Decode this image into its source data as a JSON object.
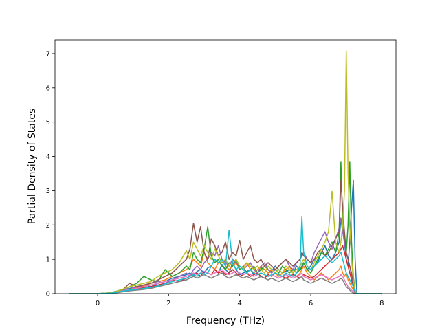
{
  "chart_data": {
    "type": "line",
    "title": "",
    "xlabel": "Frequency (THz)",
    "ylabel": "Partial Density of States",
    "xlim": [
      -1.2,
      8.4
    ],
    "ylim": [
      0,
      7.4
    ],
    "xticks": [
      0,
      2,
      4,
      6,
      8
    ],
    "yticks": [
      0,
      1,
      2,
      3,
      4,
      5,
      6,
      7
    ],
    "grid": false,
    "legend": "none",
    "colors": [
      "#1f77b4",
      "#ff7f0e",
      "#2ca02c",
      "#d62728",
      "#9467bd",
      "#8c564b",
      "#e377c2",
      "#7f7f7f",
      "#bcbd22",
      "#17becf"
    ],
    "x": [
      -0.8,
      0.0,
      0.3,
      0.5,
      0.7,
      0.9,
      1.1,
      1.3,
      1.5,
      1.7,
      1.9,
      2.1,
      2.3,
      2.5,
      2.6,
      2.7,
      2.8,
      2.9,
      3.0,
      3.1,
      3.2,
      3.3,
      3.4,
      3.5,
      3.6,
      3.7,
      3.8,
      3.9,
      4.0,
      4.1,
      4.2,
      4.3,
      4.4,
      4.5,
      4.6,
      4.7,
      4.8,
      4.9,
      5.0,
      5.1,
      5.2,
      5.3,
      5.4,
      5.5,
      5.6,
      5.7,
      5.75,
      5.8,
      5.9,
      6.0,
      6.1,
      6.2,
      6.3,
      6.4,
      6.5,
      6.6,
      6.7,
      6.8,
      6.85,
      6.9,
      6.95,
      7.0,
      7.05,
      7.1,
      7.15,
      7.2,
      7.25,
      7.3,
      8.0
    ],
    "series": [
      {
        "values": [
          0,
          0,
          0.02,
          0.05,
          0.1,
          0.15,
          0.2,
          0.25,
          0.2,
          0.3,
          0.35,
          0.45,
          0.5,
          0.55,
          0.6,
          0.5,
          0.65,
          0.7,
          0.6,
          0.75,
          0.8,
          0.7,
          0.6,
          0.85,
          0.7,
          0.6,
          0.9,
          0.7,
          0.55,
          0.6,
          0.65,
          0.7,
          0.55,
          0.6,
          0.75,
          0.7,
          0.6,
          0.65,
          0.8,
          0.7,
          0.6,
          0.65,
          0.7,
          0.6,
          0.8,
          0.7,
          0.75,
          0.9,
          0.7,
          0.8,
          1.0,
          0.9,
          1.2,
          1.4,
          1.1,
          1.0,
          1.2,
          1.5,
          2.2,
          1.8,
          1.5,
          1.0,
          0.8,
          1.5,
          2.5,
          3.3,
          1.0,
          0,
          0
        ]
      },
      {
        "values": [
          0,
          0,
          0.01,
          0.04,
          0.08,
          0.12,
          0.18,
          0.22,
          0.3,
          0.35,
          0.4,
          0.5,
          0.6,
          0.7,
          0.8,
          1.0,
          0.9,
          0.8,
          1.2,
          0.9,
          0.8,
          0.7,
          0.9,
          1.0,
          0.8,
          0.7,
          0.8,
          0.9,
          0.7,
          0.8,
          0.9,
          0.7,
          0.6,
          0.7,
          0.8,
          0.7,
          0.6,
          0.7,
          0.6,
          0.5,
          0.6,
          0.7,
          0.8,
          0.6,
          0.5,
          0.6,
          0.7,
          0.8,
          0.6,
          0.5,
          0.4,
          0.5,
          0.6,
          0.5,
          0.4,
          0.5,
          0.6,
          0.7,
          0.8,
          0.6,
          0.5,
          0.6,
          0.4,
          0.3,
          0.2,
          0.1,
          0.05,
          0,
          0
        ]
      },
      {
        "values": [
          0,
          0,
          0.02,
          0.06,
          0.12,
          0.2,
          0.3,
          0.5,
          0.4,
          0.35,
          0.7,
          0.5,
          0.6,
          0.8,
          0.7,
          1.2,
          1.0,
          0.9,
          1.3,
          1.95,
          1.1,
          0.9,
          1.0,
          0.8,
          0.7,
          0.9,
          0.8,
          1.0,
          0.7,
          0.8,
          0.6,
          0.7,
          0.8,
          0.6,
          0.7,
          0.8,
          0.7,
          0.6,
          0.7,
          0.6,
          0.8,
          0.7,
          0.6,
          0.7,
          0.6,
          0.7,
          0.8,
          0.9,
          0.7,
          0.6,
          0.8,
          1.0,
          1.2,
          1.1,
          1.3,
          1.5,
          1.2,
          1.8,
          3.85,
          2.0,
          1.5,
          1.2,
          2.0,
          3.85,
          1.5,
          0.5,
          0.1,
          0,
          0
        ]
      },
      {
        "values": [
          0,
          0,
          0.01,
          0.03,
          0.06,
          0.1,
          0.12,
          0.18,
          0.2,
          0.25,
          0.3,
          0.4,
          0.35,
          0.45,
          0.5,
          0.55,
          0.6,
          0.5,
          0.65,
          0.6,
          0.55,
          0.7,
          0.6,
          0.65,
          0.55,
          0.6,
          0.7,
          0.6,
          0.5,
          0.55,
          0.6,
          0.5,
          0.55,
          0.6,
          0.5,
          0.45,
          0.55,
          0.5,
          0.6,
          0.55,
          0.5,
          0.45,
          0.5,
          0.55,
          0.5,
          0.45,
          0.5,
          0.55,
          0.5,
          0.45,
          0.5,
          0.6,
          0.7,
          0.8,
          0.9,
          1.0,
          1.1,
          1.2,
          1.3,
          1.4,
          1.2,
          1.0,
          0.8,
          0.6,
          0.4,
          0.2,
          0.05,
          0,
          0
        ]
      },
      {
        "values": [
          0,
          0,
          0.01,
          0.05,
          0.1,
          0.2,
          0.15,
          0.25,
          0.3,
          0.35,
          0.3,
          0.4,
          0.5,
          0.6,
          0.5,
          0.7,
          0.8,
          0.7,
          0.9,
          1.0,
          1.2,
          1.1,
          1.4,
          1.0,
          0.9,
          0.8,
          1.0,
          0.9,
          0.8,
          0.7,
          0.8,
          0.9,
          0.7,
          0.6,
          0.8,
          0.9,
          0.7,
          0.6,
          0.7,
          0.8,
          0.9,
          1.0,
          0.8,
          0.7,
          0.9,
          1.0,
          1.1,
          1.2,
          1.0,
          0.9,
          1.2,
          1.4,
          1.6,
          1.8,
          1.5,
          1.3,
          1.6,
          1.9,
          2.2,
          1.8,
          1.5,
          1.2,
          1.0,
          0.8,
          0.5,
          0.3,
          0.1,
          0,
          0
        ]
      },
      {
        "values": [
          0,
          0,
          0.02,
          0.05,
          0.1,
          0.3,
          0.2,
          0.25,
          0.3,
          0.4,
          0.5,
          0.6,
          0.8,
          1.0,
          1.3,
          2.05,
          1.5,
          1.95,
          1.2,
          1.0,
          1.6,
          1.4,
          1.1,
          1.2,
          1.5,
          1.0,
          1.2,
          1.1,
          1.55,
          1.0,
          1.2,
          1.4,
          1.0,
          0.9,
          1.0,
          0.8,
          0.9,
          0.8,
          0.7,
          0.8,
          0.9,
          1.0,
          0.9,
          0.8,
          0.9,
          1.0,
          1.2,
          1.1,
          1.0,
          0.9,
          1.0,
          1.2,
          1.3,
          1.1,
          1.2,
          1.4,
          1.6,
          1.8,
          3.3,
          2.5,
          1.8,
          1.2,
          1.0,
          0.8,
          0.6,
          0.3,
          0.1,
          0,
          0
        ]
      },
      {
        "values": [
          0,
          0,
          0.01,
          0.03,
          0.08,
          0.12,
          0.15,
          0.2,
          0.25,
          0.3,
          0.35,
          0.4,
          0.45,
          0.5,
          0.55,
          0.6,
          0.55,
          0.6,
          0.65,
          0.6,
          0.55,
          0.6,
          0.65,
          0.7,
          0.6,
          0.55,
          0.6,
          0.65,
          0.6,
          0.55,
          0.6,
          0.55,
          0.5,
          0.55,
          0.6,
          0.55,
          0.5,
          0.55,
          0.5,
          0.45,
          0.5,
          0.55,
          0.5,
          0.45,
          0.5,
          0.55,
          0.6,
          0.5,
          0.45,
          0.4,
          0.45,
          0.5,
          0.55,
          0.5,
          0.45,
          0.4,
          0.45,
          0.5,
          0.55,
          0.5,
          0.4,
          0.3,
          0.2,
          0.15,
          0.1,
          0.05,
          0.02,
          0,
          0
        ]
      },
      {
        "values": [
          0,
          0,
          0.01,
          0.02,
          0.05,
          0.08,
          0.1,
          0.12,
          0.15,
          0.2,
          0.25,
          0.3,
          0.35,
          0.4,
          0.45,
          0.5,
          0.45,
          0.5,
          0.55,
          0.5,
          0.45,
          0.5,
          0.55,
          0.6,
          0.5,
          0.45,
          0.5,
          0.55,
          0.5,
          0.45,
          0.5,
          0.45,
          0.4,
          0.45,
          0.5,
          0.45,
          0.4,
          0.45,
          0.4,
          0.35,
          0.4,
          0.45,
          0.4,
          0.35,
          0.4,
          0.45,
          0.5,
          0.4,
          0.35,
          0.3,
          0.35,
          0.4,
          0.45,
          0.4,
          0.35,
          0.3,
          0.35,
          0.4,
          0.45,
          0.4,
          0.3,
          0.2,
          0.15,
          0.1,
          0.05,
          0.02,
          0.01,
          0,
          0
        ]
      },
      {
        "values": [
          0,
          0,
          0.02,
          0.05,
          0.12,
          0.2,
          0.25,
          0.3,
          0.35,
          0.5,
          0.6,
          0.7,
          0.9,
          1.25,
          1.0,
          1.5,
          1.3,
          1.1,
          1.4,
          1.2,
          1.0,
          1.3,
          1.1,
          0.9,
          1.0,
          0.8,
          0.9,
          1.0,
          0.8,
          0.7,
          0.9,
          0.8,
          0.7,
          0.8,
          0.7,
          0.6,
          0.8,
          0.7,
          0.6,
          0.7,
          0.6,
          0.8,
          0.7,
          0.6,
          0.7,
          0.8,
          0.9,
          1.0,
          0.8,
          0.7,
          0.9,
          1.1,
          1.3,
          1.5,
          1.8,
          2.98,
          1.5,
          1.2,
          1.5,
          2.0,
          3.0,
          7.08,
          3.5,
          2.0,
          1.0,
          0.4,
          0.1,
          0,
          0
        ]
      },
      {
        "values": [
          0,
          0,
          0.01,
          0.03,
          0.07,
          0.1,
          0.12,
          0.15,
          0.18,
          0.22,
          0.28,
          0.35,
          0.4,
          0.45,
          0.5,
          0.55,
          0.5,
          0.6,
          0.55,
          0.6,
          0.8,
          1.0,
          0.9,
          1.0,
          0.8,
          1.85,
          0.9,
          0.7,
          0.8,
          0.7,
          0.6,
          0.7,
          0.6,
          0.55,
          0.6,
          0.55,
          0.5,
          0.55,
          0.6,
          0.55,
          0.5,
          0.6,
          0.55,
          0.5,
          0.6,
          0.8,
          2.25,
          1.2,
          0.8,
          0.7,
          0.8,
          0.9,
          1.0,
          1.1,
          1.0,
          0.9,
          1.0,
          1.1,
          1.2,
          1.0,
          0.8,
          0.6,
          0.5,
          0.4,
          0.3,
          0.2,
          0.05,
          0,
          0
        ]
      }
    ]
  }
}
